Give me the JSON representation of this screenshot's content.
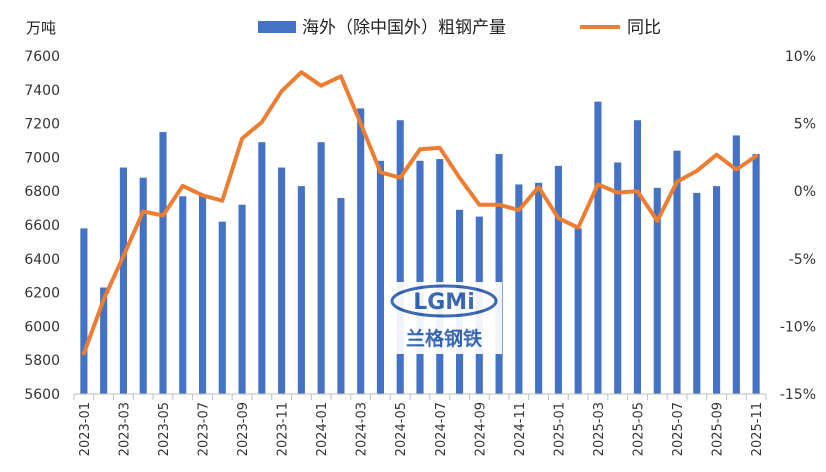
{
  "chart_data": {
    "type": "bar",
    "title": "",
    "left_axis_unit": "万吨",
    "categories": [
      "2023-01",
      "2023-02",
      "2023-03",
      "2023-04",
      "2023-05",
      "2023-06",
      "2023-07",
      "2023-08",
      "2023-09",
      "2023-10",
      "2023-11",
      "2023-12",
      "2024-01",
      "2024-02",
      "2024-03",
      "2024-04",
      "2024-05",
      "2024-06",
      "2024-07",
      "2024-08",
      "2024-09",
      "2024-10",
      "2024-11",
      "2024-12",
      "2025-01",
      "2025-02",
      "2025-03",
      "2025-04",
      "2025-05",
      "2025-06",
      "2025-07",
      "2025-08",
      "2025-09",
      "2025-10",
      "2025-11"
    ],
    "x_tick_labels": [
      "2023-01",
      "2023-03",
      "2023-05",
      "2023-07",
      "2023-09",
      "2023-11",
      "2024-01",
      "2024-03",
      "2024-05",
      "2024-07",
      "2024-09",
      "2024-11",
      "2025-01",
      "2025-03",
      "2025-05",
      "2025-07",
      "2025-09",
      "2025-11"
    ],
    "series": [
      {
        "name": "海外（除中国外）粗钢产量",
        "type": "bar",
        "axis": "left",
        "color": "#4472C4",
        "values": [
          6580,
          6230,
          6940,
          6880,
          7150,
          6770,
          6780,
          6620,
          6720,
          7090,
          6940,
          6830,
          7090,
          6760,
          7290,
          6980,
          7220,
          6980,
          6990,
          6690,
          6650,
          7020,
          6840,
          6850,
          6950,
          6580,
          7330,
          6970,
          7220,
          6820,
          7040,
          6790,
          6830,
          7130,
          7020
        ]
      },
      {
        "name": "同比",
        "type": "line",
        "axis": "right",
        "color": "#ED7D31",
        "values": [
          -12.0,
          -8.0,
          -4.8,
          -1.5,
          -1.8,
          0.4,
          -0.3,
          -0.7,
          3.9,
          5.1,
          7.4,
          8.8,
          7.8,
          8.5,
          5.0,
          1.4,
          1.0,
          3.1,
          3.2,
          1.0,
          -1.0,
          -1.0,
          -1.4,
          0.3,
          -2.0,
          -2.7,
          0.5,
          -0.1,
          0.0,
          -2.2,
          0.7,
          1.5,
          2.7,
          1.6,
          2.6
        ]
      }
    ],
    "y_left": {
      "min": 5600,
      "max": 7600,
      "ticks": [
        5600,
        5800,
        6000,
        6200,
        6400,
        6600,
        6800,
        7000,
        7200,
        7400,
        7600
      ]
    },
    "y_right": {
      "min": -15,
      "max": 10,
      "ticks": [
        -15,
        -10,
        -5,
        0,
        5,
        10
      ],
      "tick_labels": [
        "-15%",
        "-10%",
        "-5%",
        "0%",
        "5%",
        "10%"
      ]
    },
    "grid": false,
    "legend_position": "top"
  },
  "watermark": {
    "text": "LGMi",
    "subtitle": "兰格钢铁"
  }
}
